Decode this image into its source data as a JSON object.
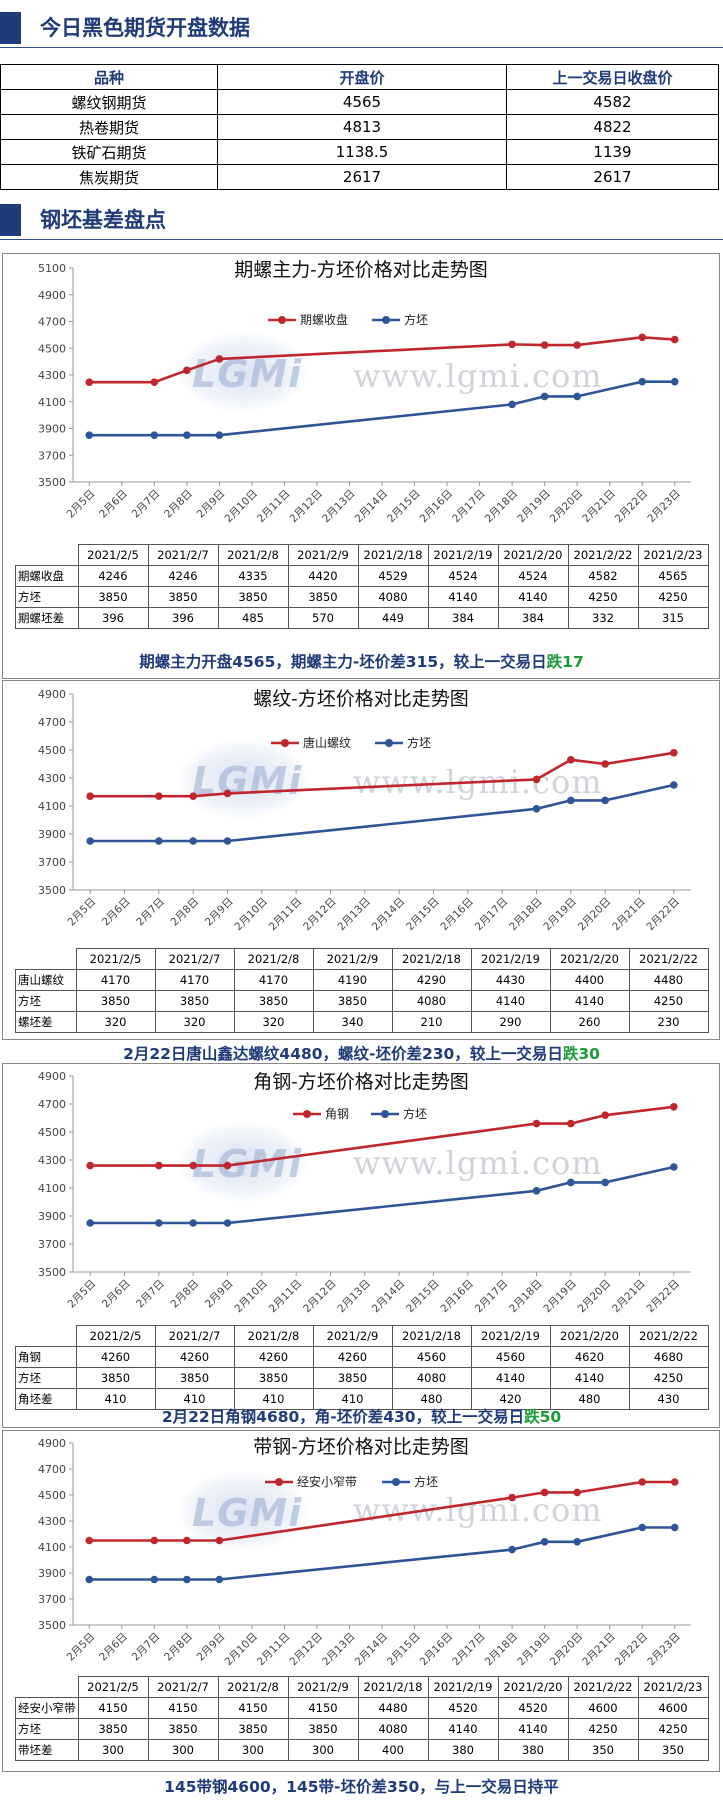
{
  "section1": {
    "title": "今日黑色期货开盘数据"
  },
  "futures_table": {
    "headers": [
      "品种",
      "开盘价",
      "上一交易日收盘价"
    ],
    "rows": [
      [
        "螺纹钢期货",
        "4565",
        "4582"
      ],
      [
        "热卷期货",
        "4813",
        "4822"
      ],
      [
        "铁矿石期货",
        "1138.5",
        "1139"
      ],
      [
        "焦炭期货",
        "2617",
        "2617"
      ]
    ]
  },
  "section2": {
    "title": "钢坯基差盘点"
  },
  "watermark": {
    "logo": "LGMi",
    "url": "www.lgmi.com"
  },
  "colors": {
    "accent": "#1f3b78",
    "red_series": "#c0272d",
    "blue_series": "#2d5597",
    "down_green": "#1a9b3a"
  },
  "charts": [
    {
      "title": "期螺主力-方坯价格对比走势图",
      "x_categories": [
        "2月5日",
        "2月6日",
        "2月7日",
        "2月8日",
        "2月9日",
        "2月10日",
        "2月11日",
        "2月12日",
        "2月13日",
        "2月14日",
        "2月15日",
        "2月16日",
        "2月17日",
        "2月18日",
        "2月19日",
        "2月20日",
        "2月21日",
        "2月22日",
        "2月23日"
      ],
      "yticks": [
        "5100",
        "4900",
        "4700",
        "4500",
        "4300",
        "4100",
        "3900",
        "3700",
        "3500"
      ],
      "legend": [
        "期螺收盘",
        "方坯"
      ],
      "table": {
        "dates": [
          "2021/2/5",
          "2021/2/7",
          "2021/2/8",
          "2021/2/9",
          "2021/2/18",
          "2021/2/19",
          "2021/2/20",
          "2021/2/22",
          "2021/2/23"
        ],
        "rows": [
          {
            "label": "期螺收盘",
            "values": [
              "4246",
              "4246",
              "4335",
              "4420",
              "4529",
              "4524",
              "4524",
              "4582",
              "4565"
            ]
          },
          {
            "label": "方坯",
            "values": [
              "3850",
              "3850",
              "3850",
              "3850",
              "4080",
              "4140",
              "4140",
              "4250",
              "4250"
            ]
          },
          {
            "label": "期螺坯差",
            "values": [
              "396",
              "396",
              "485",
              "570",
              "449",
              "384",
              "384",
              "332",
              "315"
            ]
          }
        ]
      },
      "caption": {
        "text": "期螺主力开盘4565，期螺主力-坯价差315，较上一交易日",
        "change": "跌17"
      }
    },
    {
      "title": "螺纹-方坯价格对比走势图",
      "x_categories": [
        "2月5日",
        "2月6日",
        "2月7日",
        "2月8日",
        "2月9日",
        "2月10日",
        "2月11日",
        "2月12日",
        "2月13日",
        "2月14日",
        "2月15日",
        "2月16日",
        "2月17日",
        "2月18日",
        "2月19日",
        "2月20日",
        "2月21日",
        "2月22日"
      ],
      "yticks": [
        "4900",
        "4700",
        "4500",
        "4300",
        "4100",
        "3900",
        "3700",
        "3500"
      ],
      "legend": [
        "唐山螺纹",
        "方坯"
      ],
      "table": {
        "dates": [
          "2021/2/5",
          "2021/2/7",
          "2021/2/8",
          "2021/2/9",
          "2021/2/18",
          "2021/2/19",
          "2021/2/20",
          "2021/2/22"
        ],
        "rows": [
          {
            "label": "唐山螺纹",
            "values": [
              "4170",
              "4170",
              "4170",
              "4190",
              "4290",
              "4430",
              "4400",
              "4480"
            ]
          },
          {
            "label": "方坯",
            "values": [
              "3850",
              "3850",
              "3850",
              "3850",
              "4080",
              "4140",
              "4140",
              "4250"
            ]
          },
          {
            "label": "螺坯差",
            "values": [
              "320",
              "320",
              "320",
              "340",
              "210",
              "290",
              "260",
              "230"
            ]
          }
        ]
      },
      "caption": {
        "text": "2月22日唐山鑫达螺纹4480，螺纹-坯价差230，较上一交易日",
        "change": "跌30"
      }
    },
    {
      "title": "角钢-方坯价格对比走势图",
      "x_categories": [
        "2月5日",
        "2月6日",
        "2月7日",
        "2月8日",
        "2月9日",
        "2月10日",
        "2月11日",
        "2月12日",
        "2月13日",
        "2月14日",
        "2月15日",
        "2月16日",
        "2月17日",
        "2月18日",
        "2月19日",
        "2月20日",
        "2月21日",
        "2月22日"
      ],
      "yticks": [
        "4900",
        "4700",
        "4500",
        "4300",
        "4100",
        "3900",
        "3700",
        "3500"
      ],
      "legend": [
        "角钢",
        "方坯"
      ],
      "table": {
        "dates": [
          "2021/2/5",
          "2021/2/7",
          "2021/2/8",
          "2021/2/9",
          "2021/2/18",
          "2021/2/19",
          "2021/2/20",
          "2021/2/22"
        ],
        "rows": [
          {
            "label": "角钢",
            "values": [
              "4260",
              "4260",
              "4260",
              "4260",
              "4560",
              "4560",
              "4620",
              "4680"
            ]
          },
          {
            "label": "方坯",
            "values": [
              "3850",
              "3850",
              "3850",
              "3850",
              "4080",
              "4140",
              "4140",
              "4250"
            ]
          },
          {
            "label": "角坯差",
            "values": [
              "410",
              "410",
              "410",
              "410",
              "480",
              "420",
              "480",
              "430"
            ]
          }
        ]
      },
      "caption": {
        "text": "2月22日角钢4680，角-坯价差430，较上一交易日",
        "change": "跌50"
      }
    },
    {
      "title": "带钢-方坯价格对比走势图",
      "x_categories": [
        "2月5日",
        "2月6日",
        "2月7日",
        "2月8日",
        "2月9日",
        "2月10日",
        "2月11日",
        "2月12日",
        "2月13日",
        "2月14日",
        "2月15日",
        "2月16日",
        "2月17日",
        "2月18日",
        "2月19日",
        "2月20日",
        "2月21日",
        "2月22日",
        "2月23日"
      ],
      "yticks": [
        "4900",
        "4700",
        "4500",
        "4300",
        "4100",
        "3900",
        "3700",
        "3500"
      ],
      "legend": [
        "经安小窄带",
        "方坯"
      ],
      "table": {
        "dates": [
          "2021/2/5",
          "2021/2/7",
          "2021/2/8",
          "2021/2/9",
          "2021/2/18",
          "2021/2/19",
          "2021/2/20",
          "2021/2/22",
          "2021/2/23"
        ],
        "rows": [
          {
            "label": "经安小窄带",
            "values": [
              "4150",
              "4150",
              "4150",
              "4150",
              "4480",
              "4520",
              "4520",
              "4600",
              "4600"
            ]
          },
          {
            "label": "方坯",
            "values": [
              "3850",
              "3850",
              "3850",
              "3850",
              "4080",
              "4140",
              "4140",
              "4250",
              "4250"
            ]
          },
          {
            "label": "带坯差",
            "values": [
              "300",
              "300",
              "300",
              "300",
              "400",
              "380",
              "380",
              "350",
              "350"
            ]
          }
        ]
      },
      "caption": {
        "text": "145带钢4600，145带-坯价差350，与上一交易日持平",
        "change": ""
      }
    }
  ],
  "chart_data": [
    {
      "type": "line",
      "title": "期螺主力-方坯价格对比走势图",
      "categories": [
        "2月5日",
        "2月6日",
        "2月7日",
        "2月8日",
        "2月9日",
        "2月10日",
        "2月11日",
        "2月12日",
        "2月13日",
        "2月14日",
        "2月15日",
        "2月16日",
        "2月17日",
        "2月18日",
        "2月19日",
        "2月20日",
        "2月21日",
        "2月22日",
        "2月23日"
      ],
      "series": [
        {
          "name": "期螺收盘",
          "points": [
            [
              "2月5日",
              4246
            ],
            [
              "2月7日",
              4246
            ],
            [
              "2月8日",
              4335
            ],
            [
              "2月9日",
              4420
            ],
            [
              "2月18日",
              4529
            ],
            [
              "2月19日",
              4524
            ],
            [
              "2月20日",
              4524
            ],
            [
              "2月22日",
              4582
            ],
            [
              "2月23日",
              4565
            ]
          ]
        },
        {
          "name": "方坯",
          "points": [
            [
              "2月5日",
              3850
            ],
            [
              "2月7日",
              3850
            ],
            [
              "2月8日",
              3850
            ],
            [
              "2月9日",
              3850
            ],
            [
              "2月18日",
              4080
            ],
            [
              "2月19日",
              4140
            ],
            [
              "2月20日",
              4140
            ],
            [
              "2月22日",
              4250
            ],
            [
              "2月23日",
              4250
            ]
          ]
        }
      ],
      "ylim": [
        3500,
        5100
      ],
      "ystep": 200,
      "grid": false,
      "legend": "top-center"
    },
    {
      "type": "line",
      "title": "螺纹-方坯价格对比走势图",
      "categories": [
        "2月5日",
        "2月6日",
        "2月7日",
        "2月8日",
        "2月9日",
        "2月10日",
        "2月11日",
        "2月12日",
        "2月13日",
        "2月14日",
        "2月15日",
        "2月16日",
        "2月17日",
        "2月18日",
        "2月19日",
        "2月20日",
        "2月21日",
        "2月22日"
      ],
      "series": [
        {
          "name": "唐山螺纹",
          "points": [
            [
              "2月5日",
              4170
            ],
            [
              "2月7日",
              4170
            ],
            [
              "2月8日",
              4170
            ],
            [
              "2月9日",
              4190
            ],
            [
              "2月18日",
              4290
            ],
            [
              "2月19日",
              4430
            ],
            [
              "2月20日",
              4400
            ],
            [
              "2月22日",
              4480
            ]
          ]
        },
        {
          "name": "方坯",
          "points": [
            [
              "2月5日",
              3850
            ],
            [
              "2月7日",
              3850
            ],
            [
              "2月8日",
              3850
            ],
            [
              "2月9日",
              3850
            ],
            [
              "2月18日",
              4080
            ],
            [
              "2月19日",
              4140
            ],
            [
              "2月20日",
              4140
            ],
            [
              "2月22日",
              4250
            ]
          ]
        }
      ],
      "ylim": [
        3500,
        4900
      ],
      "ystep": 200,
      "grid": false,
      "legend": "top-center"
    },
    {
      "type": "line",
      "title": "角钢-方坯价格对比走势图",
      "categories": [
        "2月5日",
        "2月6日",
        "2月7日",
        "2月8日",
        "2月9日",
        "2月10日",
        "2月11日",
        "2月12日",
        "2月13日",
        "2月14日",
        "2月15日",
        "2月16日",
        "2月17日",
        "2月18日",
        "2月19日",
        "2月20日",
        "2月21日",
        "2月22日"
      ],
      "series": [
        {
          "name": "角钢",
          "points": [
            [
              "2月5日",
              4260
            ],
            [
              "2月7日",
              4260
            ],
            [
              "2月8日",
              4260
            ],
            [
              "2月9日",
              4260
            ],
            [
              "2月18日",
              4560
            ],
            [
              "2月19日",
              4560
            ],
            [
              "2月20日",
              4620
            ],
            [
              "2月22日",
              4680
            ]
          ]
        },
        {
          "name": "方坯",
          "points": [
            [
              "2月5日",
              3850
            ],
            [
              "2月7日",
              3850
            ],
            [
              "2月8日",
              3850
            ],
            [
              "2月9日",
              3850
            ],
            [
              "2月18日",
              4080
            ],
            [
              "2月19日",
              4140
            ],
            [
              "2月20日",
              4140
            ],
            [
              "2月22日",
              4250
            ]
          ]
        }
      ],
      "ylim": [
        3500,
        4900
      ],
      "ystep": 200,
      "grid": false,
      "legend": "top-center"
    },
    {
      "type": "line",
      "title": "带钢-方坯价格对比走势图",
      "categories": [
        "2月5日",
        "2月6日",
        "2月7日",
        "2月8日",
        "2月9日",
        "2月10日",
        "2月11日",
        "2月12日",
        "2月13日",
        "2月14日",
        "2月15日",
        "2月16日",
        "2月17日",
        "2月18日",
        "2月19日",
        "2月20日",
        "2月21日",
        "2月22日",
        "2月23日"
      ],
      "series": [
        {
          "name": "经安小窄带",
          "points": [
            [
              "2月5日",
              4150
            ],
            [
              "2月7日",
              4150
            ],
            [
              "2月8日",
              4150
            ],
            [
              "2月9日",
              4150
            ],
            [
              "2月18日",
              4480
            ],
            [
              "2月19日",
              4520
            ],
            [
              "2月20日",
              4520
            ],
            [
              "2月22日",
              4600
            ],
            [
              "2月23日",
              4600
            ]
          ]
        },
        {
          "name": "方坯",
          "points": [
            [
              "2月5日",
              3850
            ],
            [
              "2月7日",
              3850
            ],
            [
              "2月8日",
              3850
            ],
            [
              "2月9日",
              3850
            ],
            [
              "2月18日",
              4080
            ],
            [
              "2月19日",
              4140
            ],
            [
              "2月20日",
              4140
            ],
            [
              "2月22日",
              4250
            ],
            [
              "2月23日",
              4250
            ]
          ]
        }
      ],
      "ylim": [
        3500,
        4900
      ],
      "ystep": 200,
      "grid": false,
      "legend": "top-center"
    }
  ]
}
